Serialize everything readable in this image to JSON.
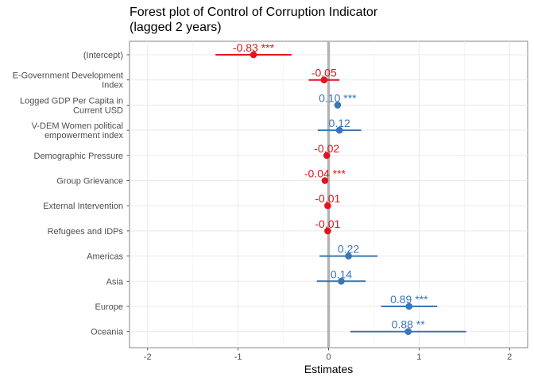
{
  "chart_data": {
    "type": "forest",
    "title_lines": [
      "Forest plot of Control of Corruption Indicator",
      "(lagged 2 years)"
    ],
    "xlabel": "Estimates",
    "xlim": [
      -2.2,
      2.2
    ],
    "xticks": [
      -2,
      -1,
      0,
      1,
      2
    ],
    "xtick_labels": [
      "-2",
      "-1",
      "0",
      "1",
      "2"
    ],
    "reference_line": 0,
    "grid": true,
    "colors": {
      "positive": "#3a75b6",
      "negative": "#e0141e",
      "reference": "#b3b3b3"
    },
    "rows": [
      {
        "lines": [
          "(Intercept)"
        ],
        "estimate": -0.83,
        "ci": [
          -1.25,
          -0.41
        ],
        "label": "-0.83 ***"
      },
      {
        "lines": [
          "E-Government Development",
          "Index"
        ],
        "estimate": -0.05,
        "ci": [
          -0.22,
          0.12
        ],
        "label": "-0.05"
      },
      {
        "lines": [
          "Logged GDP Per Capita in",
          "Current USD"
        ],
        "estimate": 0.1,
        "ci": [
          0.1,
          0.1
        ],
        "label": "0.10 ***"
      },
      {
        "lines": [
          "V-DEM Women political",
          "empowerment index"
        ],
        "estimate": 0.12,
        "ci": [
          -0.12,
          0.36
        ],
        "label": "0.12"
      },
      {
        "lines": [
          "Demographic Pressure"
        ],
        "estimate": -0.02,
        "ci": [
          -0.02,
          -0.02
        ],
        "label": "-0.02"
      },
      {
        "lines": [
          "Group Grievance"
        ],
        "estimate": -0.04,
        "ci": [
          -0.04,
          -0.04
        ],
        "label": "-0.04 ***"
      },
      {
        "lines": [
          "External Intervention"
        ],
        "estimate": -0.01,
        "ci": [
          -0.01,
          -0.01
        ],
        "label": "-0.01"
      },
      {
        "lines": [
          "Refugees and IDPs"
        ],
        "estimate": -0.01,
        "ci": [
          -0.01,
          -0.01
        ],
        "label": "-0.01"
      },
      {
        "lines": [
          "Americas"
        ],
        "estimate": 0.22,
        "ci": [
          -0.1,
          0.54
        ],
        "label": "0.22"
      },
      {
        "lines": [
          "Asia"
        ],
        "estimate": 0.14,
        "ci": [
          -0.13,
          0.41
        ],
        "label": "0.14"
      },
      {
        "lines": [
          "Europe"
        ],
        "estimate": 0.89,
        "ci": [
          0.58,
          1.2
        ],
        "label": "0.89 ***"
      },
      {
        "lines": [
          "Oceania"
        ],
        "estimate": 0.88,
        "ci": [
          0.24,
          1.52
        ],
        "label": "0.88 **"
      }
    ]
  }
}
